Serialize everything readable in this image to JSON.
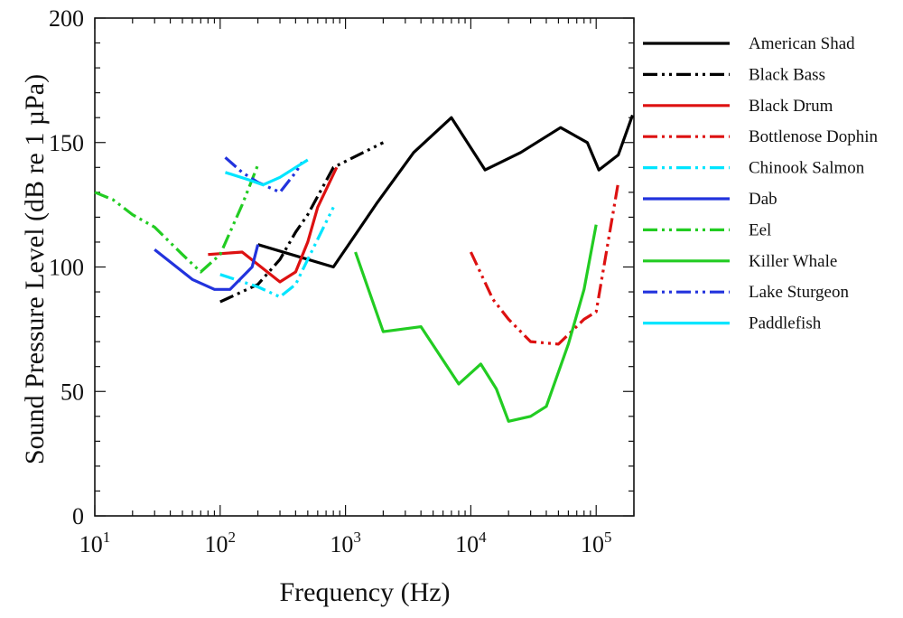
{
  "chart_data": {
    "type": "line",
    "title": "",
    "xlabel": "Frequency (Hz)",
    "ylabel": "Sound Pressure Level (dB re 1 µPa)",
    "xscale": "log",
    "xlim": [
      10,
      200000
    ],
    "ylim": [
      0,
      200
    ],
    "xticks": [
      {
        "value": 10,
        "base": "10",
        "exp": "1"
      },
      {
        "value": 100,
        "base": "10",
        "exp": "2"
      },
      {
        "value": 1000,
        "base": "10",
        "exp": "3"
      },
      {
        "value": 10000,
        "base": "10",
        "exp": "4"
      },
      {
        "value": 100000,
        "base": "10",
        "exp": "5"
      }
    ],
    "yticks": [
      "0",
      "50",
      "100",
      "150",
      "200"
    ],
    "grid": false,
    "legend_position": "right",
    "series": [
      {
        "name": "American Shad",
        "color": "#000000",
        "dash": "solid",
        "points": [
          [
            200,
            109
          ],
          [
            800,
            100
          ],
          [
            1800,
            126
          ],
          [
            3500,
            146
          ],
          [
            7000,
            160
          ],
          [
            13000,
            139
          ],
          [
            25000,
            146
          ],
          [
            52000,
            156
          ],
          [
            85000,
            150
          ],
          [
            105000,
            139
          ],
          [
            150000,
            145
          ],
          [
            195000,
            161
          ]
        ]
      },
      {
        "name": "Black Bass",
        "color": "#000000",
        "dash": "dashdotdot",
        "points": [
          [
            100,
            86
          ],
          [
            200,
            93
          ],
          [
            300,
            103
          ],
          [
            400,
            114
          ],
          [
            500,
            121
          ],
          [
            800,
            140
          ],
          [
            2000,
            150
          ]
        ]
      },
      {
        "name": "Black Drum",
        "color": "#dd1111",
        "dash": "solid",
        "points": [
          [
            80,
            105
          ],
          [
            150,
            106
          ],
          [
            200,
            101
          ],
          [
            300,
            94
          ],
          [
            400,
            98
          ],
          [
            500,
            110
          ],
          [
            600,
            124
          ],
          [
            850,
            140
          ]
        ]
      },
      {
        "name": "Bottlenose Dophin",
        "color": "#dd1111",
        "dash": "dashdotdot",
        "points": [
          [
            10000,
            106
          ],
          [
            15000,
            87
          ],
          [
            20000,
            79
          ],
          [
            30000,
            70
          ],
          [
            50000,
            69
          ],
          [
            80000,
            79
          ],
          [
            100000,
            82
          ],
          [
            150000,
            134
          ]
        ]
      },
      {
        "name": "Chinook Salmon",
        "color": "#00e5ff",
        "dash": "dashdotdot",
        "points": [
          [
            100,
            97
          ],
          [
            200,
            92
          ],
          [
            300,
            88
          ],
          [
            400,
            93
          ],
          [
            500,
            103
          ],
          [
            800,
            124
          ]
        ]
      },
      {
        "name": "Dab",
        "color": "#2233dd",
        "dash": "solid",
        "points": [
          [
            30,
            107
          ],
          [
            60,
            95
          ],
          [
            90,
            91
          ],
          [
            120,
            91
          ],
          [
            180,
            100
          ],
          [
            200,
            109
          ]
        ]
      },
      {
        "name": "Eel",
        "color": "#22cc22",
        "dash": "dashdotdot",
        "points": [
          [
            10,
            130
          ],
          [
            14,
            127
          ],
          [
            20,
            121
          ],
          [
            30,
            116
          ],
          [
            50,
            105
          ],
          [
            70,
            98
          ],
          [
            100,
            105
          ],
          [
            150,
            125
          ],
          [
            200,
            141
          ]
        ]
      },
      {
        "name": "Killer Whale",
        "color": "#22cc22",
        "dash": "solid",
        "points": [
          [
            1200,
            106
          ],
          [
            2000,
            74
          ],
          [
            4000,
            76
          ],
          [
            8000,
            53
          ],
          [
            12000,
            61
          ],
          [
            16000,
            51
          ],
          [
            20000,
            38
          ],
          [
            30000,
            40
          ],
          [
            40000,
            44
          ],
          [
            60000,
            69
          ],
          [
            80000,
            91
          ],
          [
            100000,
            117
          ]
        ]
      },
      {
        "name": "Lake Sturgeon",
        "color": "#2233dd",
        "dash": "dashdotdot",
        "points": [
          [
            110,
            144
          ],
          [
            150,
            138
          ],
          [
            200,
            134
          ],
          [
            300,
            130
          ],
          [
            400,
            138
          ],
          [
            450,
            142
          ]
        ]
      },
      {
        "name": "Paddlefish",
        "color": "#00e5ff",
        "dash": "solid",
        "points": [
          [
            110,
            138
          ],
          [
            170,
            135
          ],
          [
            220,
            133
          ],
          [
            300,
            136
          ],
          [
            400,
            140
          ],
          [
            500,
            143
          ]
        ]
      }
    ]
  }
}
